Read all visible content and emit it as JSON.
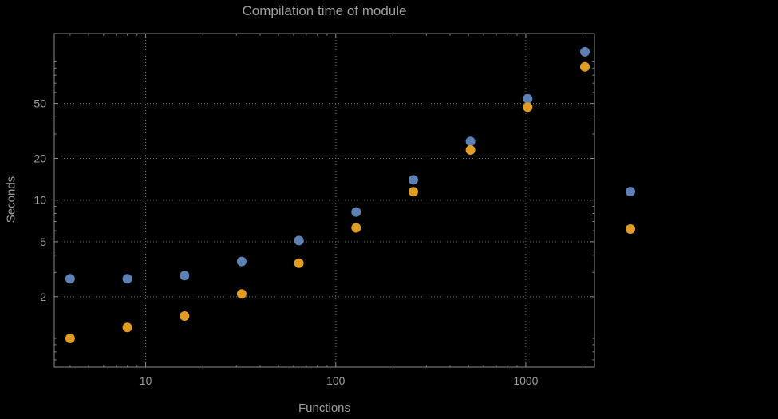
{
  "page": {
    "background": "#000000",
    "text_color": "#9c9c9c"
  },
  "chart_data": {
    "type": "scatter",
    "title": "Compilation time of module",
    "xlabel": "Functions",
    "ylabel": "Seconds",
    "x_scale": "log",
    "y_scale": "log",
    "x": [
      4,
      8,
      16,
      32,
      64,
      128,
      256,
      512,
      1024,
      2048
    ],
    "series": [
      {
        "name": "blue-series",
        "color": "#5e81b5",
        "values": [
          2.7,
          2.7,
          2.85,
          3.6,
          5.1,
          8.2,
          14,
          26.5,
          54,
          118
        ]
      },
      {
        "name": "orange-series",
        "color": "#e19c24",
        "values": [
          1.0,
          1.2,
          1.45,
          2.1,
          3.5,
          6.3,
          11.5,
          23,
          47,
          92
        ]
      }
    ],
    "x_ticks": [
      10,
      100,
      1000
    ],
    "y_ticks": [
      2,
      5,
      10,
      20,
      50
    ],
    "xlim": [
      3.3,
      2300
    ],
    "ylim": [
      0.62,
      160
    ],
    "grid": true,
    "grid_style": "dotted",
    "grid_color": "#707070",
    "frame_color": "#8a8a8a",
    "point_radius": 6,
    "legend_markers": [
      {
        "series": "blue-series",
        "color": "#5e81b5",
        "label": ""
      },
      {
        "series": "orange-series",
        "color": "#e19c24",
        "label": ""
      }
    ]
  }
}
